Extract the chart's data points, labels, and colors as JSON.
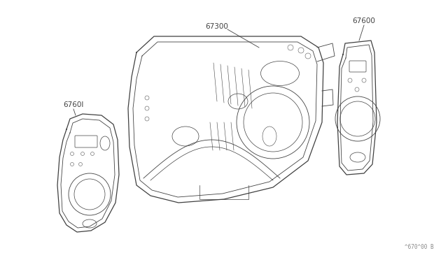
{
  "background_color": "#ffffff",
  "line_color": "#404040",
  "label_color": "#404040",
  "watermark": "^670^00 B",
  "lw_outer": 0.9,
  "lw_inner": 0.6,
  "lw_detail": 0.5,
  "label_fs": 7.5
}
